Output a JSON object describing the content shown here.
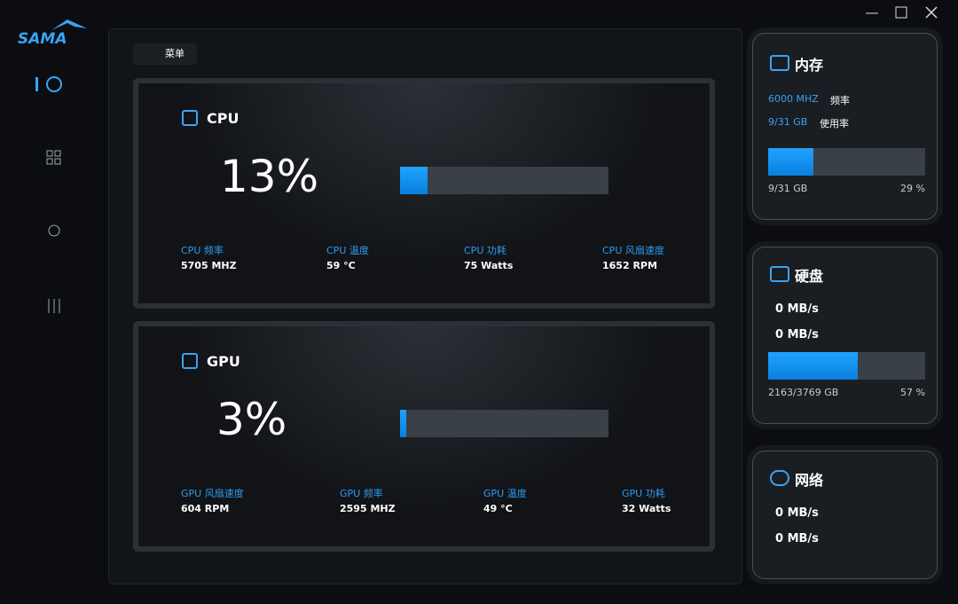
{
  "logo": "SAMA",
  "menu_button": "菜单",
  "cpu": {
    "title": "CPU",
    "usage": {
      "value": 13,
      "label": "13%"
    },
    "stats": [
      {
        "label": "CPU 频率",
        "value": "5705 MHZ"
      },
      {
        "label": "CPU 温度",
        "value": "59 °C"
      },
      {
        "label": "CPU 功耗",
        "value": "75 Watts"
      },
      {
        "label": "CPU 风扇速度",
        "value": "1652 RPM"
      }
    ]
  },
  "gpu": {
    "title": "GPU",
    "usage": {
      "value": 3,
      "label": "3%"
    },
    "stats": [
      {
        "label": "GPU 风扇速度",
        "value": "604 RPM"
      },
      {
        "label": "GPU 频率",
        "value": "2595 MHZ"
      },
      {
        "label": "GPU 温度",
        "value": "49 °C"
      },
      {
        "label": "GPU 功耗",
        "value": "32 Watts"
      }
    ]
  },
  "memory": {
    "title": "内存",
    "rows": [
      {
        "value": "6000 MHZ",
        "label": "频率"
      },
      {
        "value": "9/31 GB",
        "label": "使用率"
      }
    ],
    "bar": {
      "value": 29,
      "label": "29 %"
    },
    "bar_caption": "9/31 GB"
  },
  "disk": {
    "title": "硬盘",
    "rows": [
      "0 MB/s",
      "0 MB/s"
    ],
    "bar": {
      "value": 57,
      "label": "57 %"
    },
    "bar_caption": "2163/3769 GB"
  },
  "network": {
    "title": "网络",
    "rows": [
      "0 MB/s",
      "0 MB/s"
    ]
  }
}
